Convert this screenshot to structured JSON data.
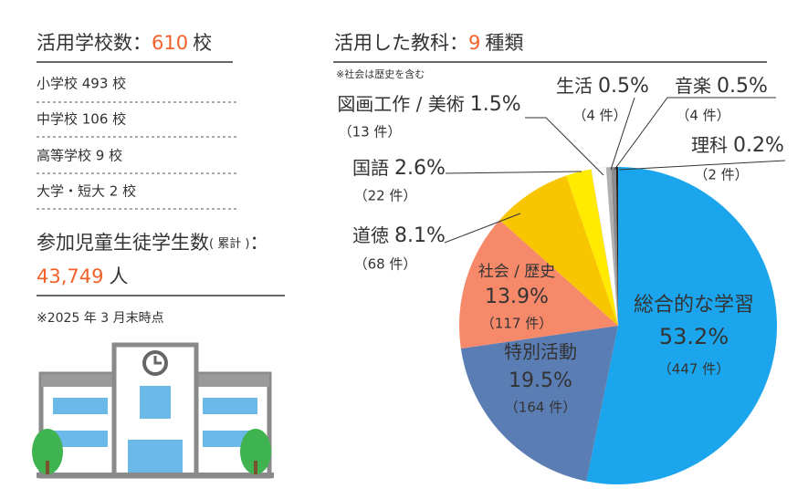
{
  "schools": {
    "label": "活用学校数：",
    "total": 610,
    "unit": "校",
    "items": [
      "小学校 493 校",
      "中学校 106 校",
      "高等学校 9 校",
      "大学・短大 2 校"
    ]
  },
  "participants": {
    "label": "参加児童生徒学生数",
    "qualifier": "( 累計 )",
    "colon": "：",
    "total": "43,749",
    "unit": "人"
  },
  "as_of": "※2025 年 3 月末時点",
  "chart_data": {
    "type": "pie",
    "title": "活用した教科：",
    "subject_count": 9,
    "subject_unit": "種類",
    "note": "※社会は歴史を含む",
    "categories": [
      "総合的な学習",
      "特別活動",
      "社会 / 歴史",
      "道徳",
      "国語",
      "図画工作 / 美術",
      "生活",
      "音楽",
      "理科"
    ],
    "values": [
      53.2,
      19.5,
      13.9,
      8.1,
      2.6,
      1.5,
      0.5,
      0.5,
      0.2
    ],
    "value_labels": [
      "53.2%",
      "19.5%",
      "13.9%",
      "8.1%",
      "2.6%",
      "1.5%",
      "0.5%",
      "0.5%",
      "0.2%"
    ],
    "count_labels": [
      "（447 件）",
      "（164 件）",
      "（117 件）",
      "（68 件）",
      "（22 件）",
      "（13 件）",
      "（4 件）",
      "（4 件）",
      "（2 件）"
    ],
    "colors": [
      "#1ba5ec",
      "#5a7db3",
      "#f7896b",
      "#f8c600",
      "#ffea00",
      "#ffffff",
      "#b0b0b0",
      "#8c8c8c",
      "#222222"
    ]
  }
}
